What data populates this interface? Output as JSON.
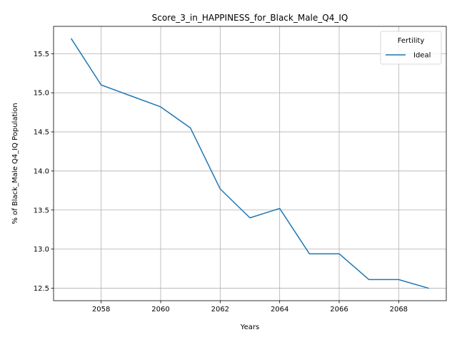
{
  "chart_data": {
    "type": "line",
    "title": "Score_3_in_HAPPINESS_for_Black_Male_Q4_IQ",
    "xlabel": "Years",
    "ylabel": "% of Black_Male Q4_IQ Population",
    "xlim": [
      2056.4,
      2069.6
    ],
    "ylim": [
      12.34,
      15.85
    ],
    "xticks": [
      2058,
      2060,
      2062,
      2064,
      2066,
      2068
    ],
    "yticks": [
      12.5,
      13.0,
      13.5,
      14.0,
      14.5,
      15.0,
      15.5
    ],
    "grid": true,
    "legend": {
      "title": "Fertility",
      "placement": "top-right"
    },
    "x": [
      2057,
      2058,
      2059,
      2060,
      2061,
      2062,
      2063,
      2064,
      2065,
      2066,
      2067,
      2068,
      2069
    ],
    "series": [
      {
        "name": "Ideal",
        "color": "#1f77b4",
        "values": [
          15.69,
          15.1,
          14.96,
          14.82,
          14.55,
          13.77,
          13.4,
          13.52,
          12.94,
          12.94,
          12.61,
          12.61,
          12.5
        ]
      }
    ]
  }
}
